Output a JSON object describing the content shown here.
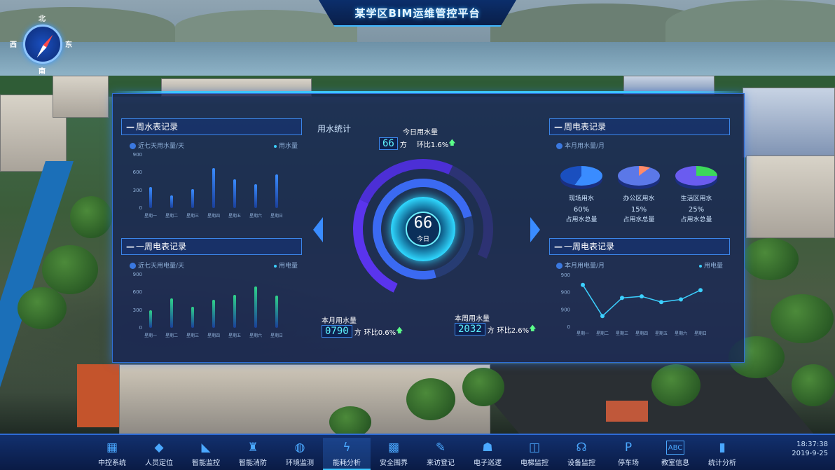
{
  "header": {
    "title": "某学区BIM运维管控平台"
  },
  "compass": {
    "north": "北",
    "west": "西",
    "east": "东",
    "south": "南"
  },
  "left_top": {
    "title": "周水表记录",
    "legend_left": "近七天用水量/天",
    "legend_right": "用水量",
    "chart_data": {
      "type": "bar",
      "categories": [
        "星期一",
        "星期二",
        "星期三",
        "星期四",
        "星期五",
        "星期六",
        "星期日"
      ],
      "values": [
        350,
        210,
        320,
        680,
        480,
        400,
        570
      ],
      "yticks": [
        "900",
        "600",
        "300",
        "0"
      ],
      "ylim": [
        0,
        900
      ],
      "color": "#3a8cff"
    }
  },
  "left_bottom": {
    "title": "一周电表记录",
    "legend_left": "近七天用电量/天",
    "legend_right": "用电量",
    "chart_data": {
      "type": "bar",
      "categories": [
        "星期一",
        "星期二",
        "星期三",
        "星期四",
        "星期五",
        "星期六",
        "星期日"
      ],
      "values": [
        300,
        500,
        360,
        470,
        560,
        700,
        550
      ],
      "yticks": [
        "900",
        "600",
        "300",
        "0"
      ],
      "ylim": [
        0,
        900
      ],
      "color": "#2fd38a"
    }
  },
  "center": {
    "section_label": "用水统计",
    "today_label": "今日用水量",
    "today_value": "66",
    "today_unit": "方",
    "today_compare": "环比1.6%",
    "gauge_value": "66",
    "gauge_label": "今日",
    "month_label": "本月用水量",
    "month_value": "0790",
    "month_unit": "方",
    "month_compare": "环比0.6%",
    "week_label": "本周用水量",
    "week_value": "2032",
    "week_unit": "方",
    "week_compare": "环比2.6%"
  },
  "right_top": {
    "title": "周电表记录",
    "legend_left": "本月用水量/月",
    "chart_data": {
      "type": "pie",
      "items": [
        {
          "name": "现场用水",
          "value": 60,
          "pct": "60%",
          "sub": "占用水总量"
        },
        {
          "name": "办公区用水",
          "value": 15,
          "pct": "15%",
          "sub": "占用水总量"
        },
        {
          "name": "生活区用水",
          "value": 25,
          "pct": "25%",
          "sub": "占用水总量"
        }
      ]
    }
  },
  "right_bottom": {
    "title": "一周电表记录",
    "legend_left": "本月用电量/月",
    "legend_right": "用电量",
    "chart_data": {
      "type": "line",
      "categories": [
        "星期一",
        "星期二",
        "星期三",
        "星期四",
        "星期五",
        "星期六",
        "星期日"
      ],
      "values": [
        940,
        880,
        915,
        918,
        907,
        912,
        930
      ],
      "yticks": [
        "900",
        "900",
        "900",
        "0"
      ],
      "ylim": [
        860,
        960
      ],
      "color": "#3cd0ff"
    }
  },
  "nav": [
    {
      "label": "中控系统",
      "icon": "control-icon",
      "glyph": "▦"
    },
    {
      "label": "人员定位",
      "icon": "locate-icon",
      "glyph": "◆"
    },
    {
      "label": "智能监控",
      "icon": "camera-icon",
      "glyph": "◣"
    },
    {
      "label": "智能消防",
      "icon": "fire-icon",
      "glyph": "♜"
    },
    {
      "label": "环境监测",
      "icon": "drop-icon",
      "glyph": "◍"
    },
    {
      "label": "能耗分析",
      "icon": "lightning-icon",
      "glyph": "ϟ"
    },
    {
      "label": "安全围界",
      "icon": "fence-icon",
      "glyph": "▩"
    },
    {
      "label": "来访登记",
      "icon": "register-icon",
      "glyph": "✎"
    },
    {
      "label": "电子巡逻",
      "icon": "patrol-icon",
      "glyph": "☗"
    },
    {
      "label": "电梯监控",
      "icon": "elevator-icon",
      "glyph": "◫"
    },
    {
      "label": "设备监控",
      "icon": "device-icon",
      "glyph": "☊"
    },
    {
      "label": "停车场",
      "icon": "parking-icon",
      "glyph": "P"
    },
    {
      "label": "教室信息",
      "icon": "abc-icon",
      "glyph": "ABC"
    },
    {
      "label": "统计分析",
      "icon": "stats-icon",
      "glyph": "▮"
    }
  ],
  "active_nav": "能耗分析",
  "clock": {
    "time": "18:37:38",
    "date": "2019-9-25"
  }
}
